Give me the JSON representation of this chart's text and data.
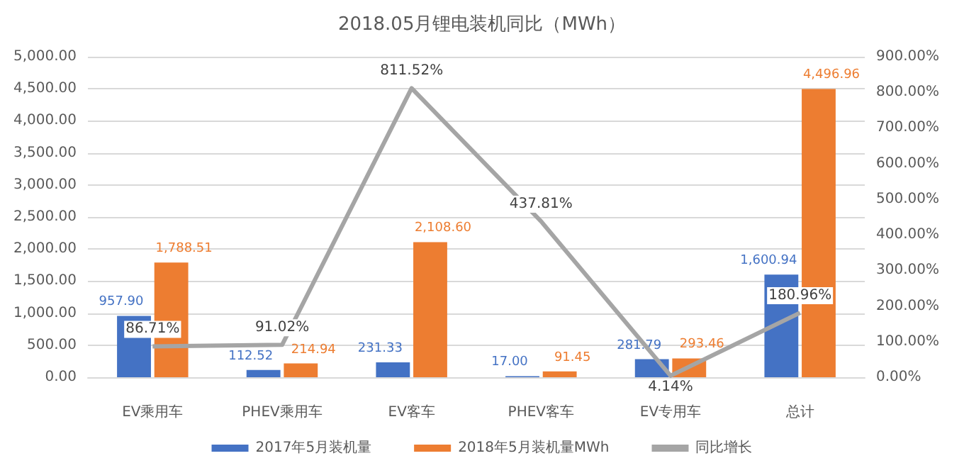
{
  "chart_data": {
    "type": "bar",
    "title": "2018.05月锂电装机同比（MWh）",
    "categories": [
      "EV乘用车",
      "PHEV乘用车",
      "EV客车",
      "PHEV客车",
      "EV专用车",
      "总计"
    ],
    "series": [
      {
        "name": "2017年5月装机量",
        "color": "#4472c4",
        "values": [
          957.9,
          112.52,
          231.33,
          17.0,
          281.79,
          1600.94
        ],
        "value_labels": [
          "957.90",
          "112.52",
          "231.33",
          "17.00",
          "281.79",
          "1,600.94"
        ]
      },
      {
        "name": "2018年5月装机量MWh",
        "color": "#ed7d31",
        "values": [
          1788.51,
          214.94,
          2108.6,
          91.45,
          293.46,
          4496.96
        ],
        "value_labels": [
          "1,788.51",
          "214.94",
          "2,108.60",
          "91.45",
          "293.46",
          "4,496.96"
        ]
      },
      {
        "name": "同比增长",
        "type": "line",
        "axis": "y2",
        "color": "#a5a5a5",
        "values": [
          86.71,
          91.02,
          811.52,
          437.81,
          4.14,
          180.96
        ],
        "value_labels": [
          "86.71%",
          "91.02%",
          "811.52%",
          "437.81%",
          "4.14%",
          "180.96%"
        ]
      }
    ],
    "ylim": [
      0,
      5000
    ],
    "yticks": [
      {
        "value": 0,
        "label": "0.00"
      },
      {
        "value": 500,
        "label": "500.00"
      },
      {
        "value": 1000,
        "label": "1,000.00"
      },
      {
        "value": 1500,
        "label": "1,500.00"
      },
      {
        "value": 2000,
        "label": "2,000.00"
      },
      {
        "value": 2500,
        "label": "2,500.00"
      },
      {
        "value": 3000,
        "label": "3,000.00"
      },
      {
        "value": 3500,
        "label": "3,500.00"
      },
      {
        "value": 4000,
        "label": "4,000.00"
      },
      {
        "value": 4500,
        "label": "4,500.00"
      },
      {
        "value": 5000,
        "label": "5,000.00"
      }
    ],
    "y2lim": [
      0,
      900
    ],
    "y2ticks": [
      {
        "value": 0,
        "label": "0.00%"
      },
      {
        "value": 100,
        "label": "100.00%"
      },
      {
        "value": 200,
        "label": "200.00%"
      },
      {
        "value": 300,
        "label": "300.00%"
      },
      {
        "value": 400,
        "label": "400.00%"
      },
      {
        "value": 500,
        "label": "500.00%"
      },
      {
        "value": 600,
        "label": "600.00%"
      },
      {
        "value": 700,
        "label": "700.00%"
      },
      {
        "value": 800,
        "label": "800.00%"
      },
      {
        "value": 900,
        "label": "900.00%"
      }
    ],
    "grid": "y",
    "legend": "bottom",
    "marker": "none",
    "line_style": "solid"
  }
}
